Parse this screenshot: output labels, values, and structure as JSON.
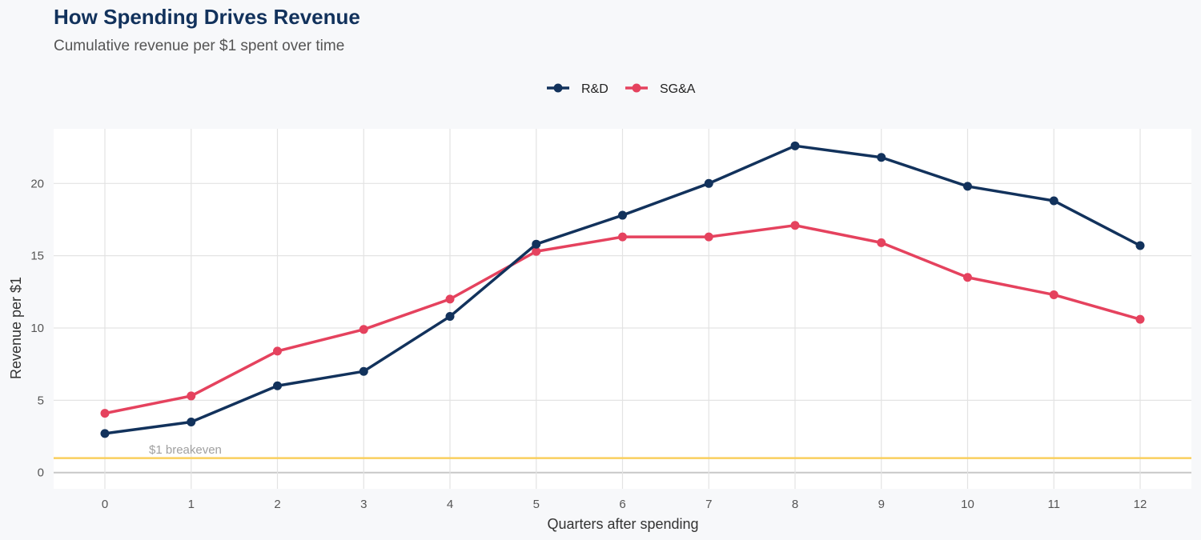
{
  "chart_data": {
    "type": "line",
    "title": "How Spending Drives Revenue",
    "subtitle": "Cumulative revenue per $1 spent over time",
    "xlabel": "Quarters after spending",
    "ylabel": "Revenue per $1",
    "x": [
      0,
      1,
      2,
      3,
      4,
      5,
      6,
      7,
      8,
      9,
      10,
      11,
      12
    ],
    "xlim": [
      -0.6,
      12.6
    ],
    "ylim": [
      -1.1,
      23.8
    ],
    "yticks": [
      0,
      5,
      10,
      15,
      20
    ],
    "grid": true,
    "legend_position": "top",
    "series": [
      {
        "name": "R&D",
        "color": "#12325c",
        "values": [
          2.7,
          3.5,
          6.0,
          7.0,
          10.8,
          15.8,
          17.8,
          20.0,
          22.6,
          21.8,
          19.8,
          18.8,
          15.7
        ]
      },
      {
        "name": "SG&A",
        "color": "#e5425e",
        "values": [
          4.1,
          5.3,
          8.4,
          9.9,
          12.0,
          15.3,
          16.3,
          16.3,
          17.1,
          15.9,
          13.5,
          12.3,
          10.6
        ]
      }
    ],
    "reference_line": {
      "y": 1,
      "label": "$1 breakeven",
      "color": "#f9cf5e"
    }
  }
}
